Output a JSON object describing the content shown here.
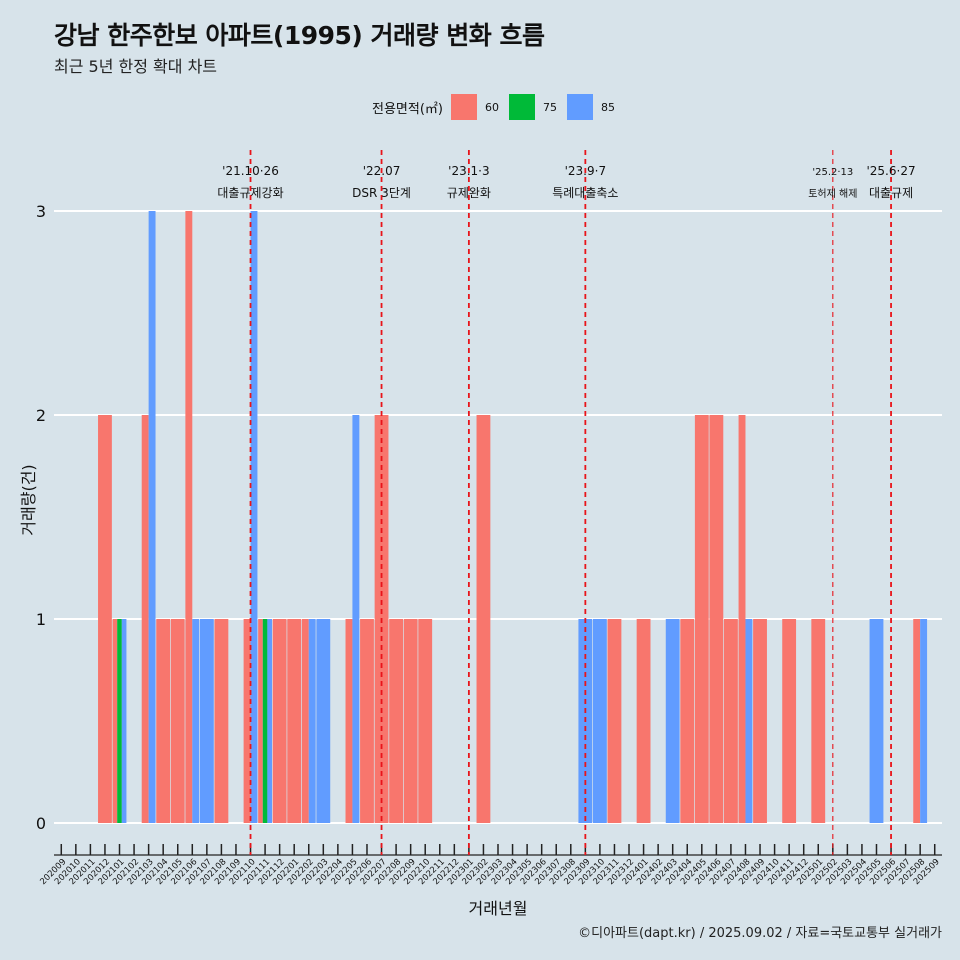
{
  "title": "강남 한주한보 아파트(1995) 거래량 변화 흐름",
  "subtitle": "최근 5년 한정 확대 차트",
  "caption": "©디아파트(dapt.kr) / 2025.09.02 / 자료=국토교통부 실거래가",
  "legend": {
    "title": "전용면적(㎡)",
    "items": [
      {
        "label": "60",
        "color": "#f8766d"
      },
      {
        "label": "75",
        "color": "#00ba38"
      },
      {
        "label": "85",
        "color": "#619cff"
      }
    ]
  },
  "chart_data": {
    "type": "bar",
    "stacking": "dodge",
    "xlabel": "거래년월",
    "ylabel": "거래량(건)",
    "ylim": [
      0,
      3
    ],
    "yticks": [
      "0",
      "1",
      "2",
      "3"
    ],
    "grid": true,
    "legend_position": "top",
    "categories": [
      "202009",
      "202010",
      "202011",
      "202012",
      "202101",
      "202102",
      "202103",
      "202104",
      "202105",
      "202106",
      "202107",
      "202108",
      "202109",
      "202110",
      "202111",
      "202112",
      "202201",
      "202202",
      "202203",
      "202204",
      "202205",
      "202206",
      "202207",
      "202208",
      "202209",
      "202210",
      "202211",
      "202212",
      "202301",
      "202302",
      "202303",
      "202304",
      "202305",
      "202306",
      "202307",
      "202308",
      "202309",
      "202310",
      "202311",
      "202312",
      "202401",
      "202402",
      "202403",
      "202404",
      "202405",
      "202406",
      "202407",
      "202408",
      "202409",
      "202410",
      "202411",
      "202412",
      "202501",
      "202502",
      "202503",
      "202504",
      "202505",
      "202506",
      "202507",
      "202508",
      "202509"
    ],
    "series": [
      {
        "name": "60",
        "color": "#f8766d",
        "values": [
          0,
          0,
          0,
          2,
          1,
          0,
          2,
          1,
          1,
          3,
          0,
          1,
          0,
          1,
          1,
          1,
          1,
          1,
          0,
          0,
          1,
          1,
          2,
          1,
          1,
          1,
          0,
          0,
          0,
          2,
          0,
          0,
          0,
          0,
          0,
          0,
          0,
          0,
          1,
          0,
          1,
          0,
          0,
          1,
          2,
          2,
          1,
          2,
          1,
          0,
          1,
          0,
          1,
          0,
          0,
          0,
          0,
          0,
          0,
          1,
          0
        ]
      },
      {
        "name": "75",
        "color": "#00ba38",
        "values": [
          0,
          0,
          0,
          0,
          1,
          0,
          0,
          0,
          0,
          0,
          0,
          0,
          0,
          0,
          1,
          0,
          0,
          0,
          0,
          0,
          0,
          0,
          0,
          0,
          0,
          0,
          0,
          0,
          0,
          0,
          0,
          0,
          0,
          0,
          0,
          0,
          0,
          0,
          0,
          0,
          0,
          0,
          0,
          0,
          0,
          0,
          0,
          0,
          0,
          0,
          0,
          0,
          0,
          0,
          0,
          0,
          0,
          0,
          0,
          0,
          0
        ]
      },
      {
        "name": "85",
        "color": "#619cff",
        "values": [
          0,
          0,
          0,
          0,
          1,
          0,
          3,
          0,
          0,
          1,
          1,
          0,
          0,
          3,
          1,
          0,
          0,
          1,
          1,
          0,
          2,
          0,
          0,
          0,
          0,
          0,
          0,
          0,
          0,
          0,
          0,
          0,
          0,
          0,
          0,
          0,
          1,
          1,
          0,
          0,
          0,
          0,
          1,
          0,
          0,
          0,
          0,
          1,
          0,
          0,
          0,
          0,
          0,
          0,
          0,
          0,
          1,
          0,
          0,
          1,
          0
        ]
      }
    ],
    "annotations": [
      {
        "category": "202110",
        "date": "'21.10·26",
        "label": "대출규제강화",
        "style": "bold"
      },
      {
        "category": "202207",
        "date": "'22.07",
        "label": "DSR 3단계",
        "style": "bold"
      },
      {
        "category": "202301",
        "date": "'23.1·3",
        "label": "규제완화",
        "style": "bold"
      },
      {
        "category": "202309",
        "date": "'23.9·7",
        "label": "특례대출축소",
        "style": "bold"
      },
      {
        "category": "202502",
        "date": "'25.2·13",
        "label": "토허제 해제",
        "style": "thin"
      },
      {
        "category": "202506",
        "date": "'25.6·27",
        "label": "대출규제",
        "style": "bold"
      }
    ]
  }
}
